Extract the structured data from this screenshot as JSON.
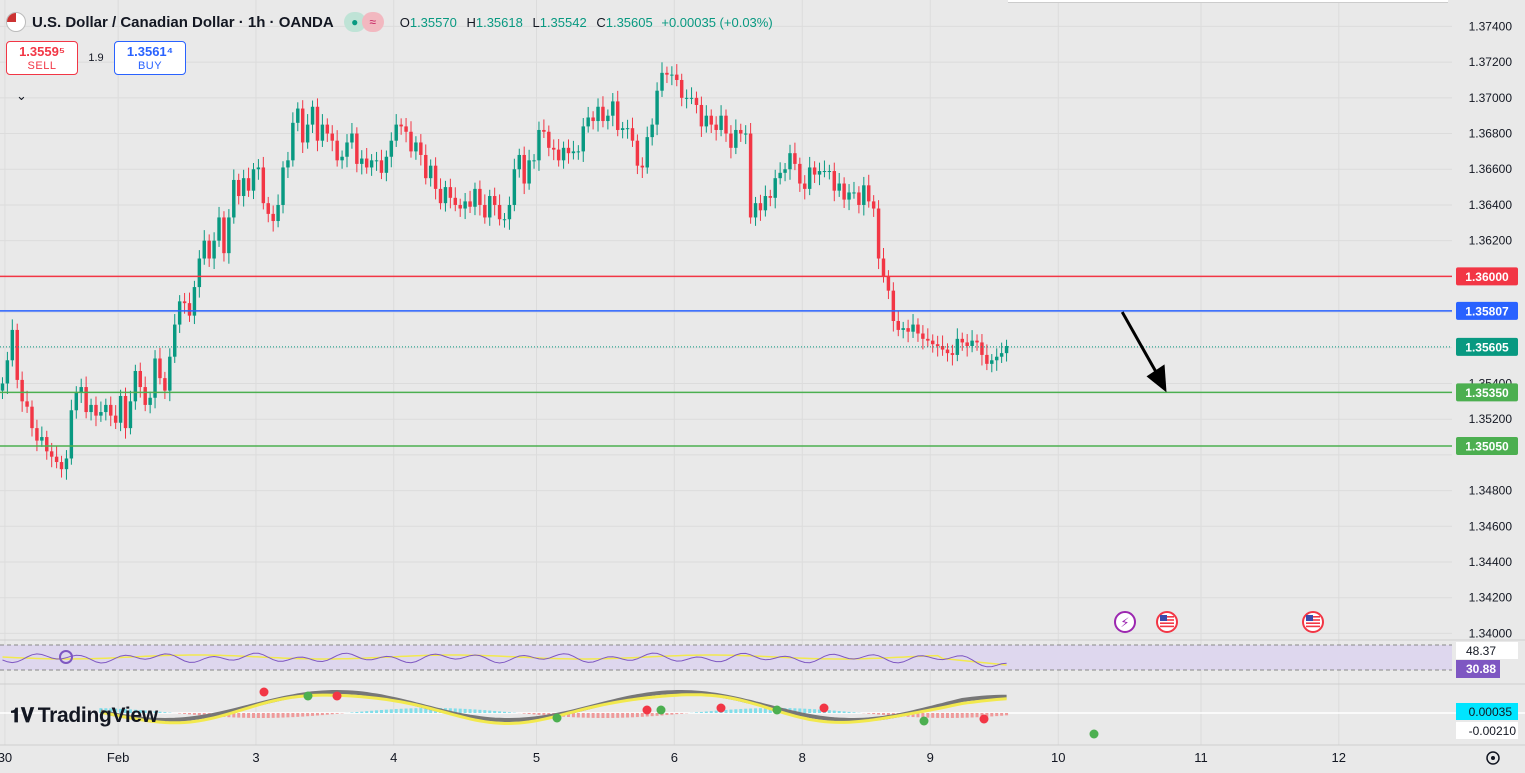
{
  "header": {
    "symbol": "U.S. Dollar / Canadian Dollar · 1h · OANDA",
    "ohlc": [
      {
        "key": "O",
        "value": "1.35570"
      },
      {
        "key": "H",
        "value": "1.35618"
      },
      {
        "key": "L",
        "value": "1.35542"
      },
      {
        "key": "C",
        "value": "1.35605"
      }
    ],
    "change": "+0.00035 (+0.03%)"
  },
  "trade": {
    "sell_price": "1.3559⁵",
    "sell_label": "SELL",
    "spread": "1.9",
    "buy_price": "1.3561⁴",
    "buy_label": "BUY"
  },
  "brand": "TradingView",
  "colors": {
    "up": "#089981",
    "down": "#f23645",
    "resistance": "#f23645",
    "pivot": "#2962ff",
    "support": "#4caf50",
    "rsi": "#7e57c2",
    "rsi_ma": "#f2e94e"
  },
  "chart_data": {
    "type": "candlestick",
    "x_ticks": [
      "30",
      "Feb",
      "3",
      "4",
      "5",
      "6",
      "8",
      "9",
      "10",
      "11",
      "12"
    ],
    "x_tick_hours": [
      1,
      24,
      52,
      80,
      109,
      137,
      163,
      189,
      215,
      244,
      272
    ],
    "candles_close": [
      1.354,
      1.3553,
      1.357,
      1.3542,
      1.353,
      1.3527,
      1.3515,
      1.3508,
      1.351,
      1.3502,
      1.3499,
      1.3496,
      1.3492,
      1.3498,
      1.3525,
      1.3535,
      1.3538,
      1.3524,
      1.3528,
      1.3522,
      1.3524,
      1.3528,
      1.3522,
      1.3518,
      1.3533,
      1.3515,
      1.353,
      1.3547,
      1.3538,
      1.3528,
      1.3532,
      1.3554,
      1.3543,
      1.3536,
      1.3555,
      1.3573,
      1.3586,
      1.3585,
      1.3578,
      1.3594,
      1.361,
      1.362,
      1.361,
      1.362,
      1.3633,
      1.3613,
      1.3633,
      1.3654,
      1.3645,
      1.3655,
      1.3648,
      1.366,
      1.3661,
      1.3641,
      1.3635,
      1.3631,
      1.364,
      1.3661,
      1.3665,
      1.3686,
      1.3694,
      1.3675,
      1.3685,
      1.3695,
      1.3676,
      1.3685,
      1.368,
      1.3676,
      1.3665,
      1.3667,
      1.3675,
      1.368,
      1.3663,
      1.3666,
      1.3661,
      1.3665,
      1.3665,
      1.3658,
      1.3667,
      1.3676,
      1.3685,
      1.3684,
      1.3681,
      1.367,
      1.3675,
      1.3668,
      1.3655,
      1.3662,
      1.3649,
      1.3641,
      1.365,
      1.3644,
      1.364,
      1.3638,
      1.3642,
      1.3639,
      1.3649,
      1.364,
      1.3633,
      1.3645,
      1.364,
      1.3632,
      1.3632,
      1.364,
      1.366,
      1.3668,
      1.3652,
      1.3665,
      1.3665,
      1.3682,
      1.3681,
      1.3672,
      1.3671,
      1.3665,
      1.3672,
      1.3669,
      1.367,
      1.367,
      1.3684,
      1.3689,
      1.3687,
      1.3695,
      1.3687,
      1.369,
      1.3698,
      1.3682,
      1.3683,
      1.3683,
      1.3676,
      1.3662,
      1.3661,
      1.3678,
      1.3685,
      1.3704,
      1.3714,
      1.3713,
      1.3713,
      1.371,
      1.37,
      1.37,
      1.37,
      1.3696,
      1.3684,
      1.369,
      1.3685,
      1.3682,
      1.369,
      1.368,
      1.3672,
      1.3682,
      1.368,
      1.368,
      1.3633,
      1.3641,
      1.3637,
      1.3645,
      1.3644,
      1.3655,
      1.3658,
      1.366,
      1.3669,
      1.3663,
      1.3652,
      1.3649,
      1.3661,
      1.3657,
      1.3659,
      1.3659,
      1.3659,
      1.3648,
      1.3652,
      1.3643,
      1.3647,
      1.3647,
      1.364,
      1.3651,
      1.3642,
      1.3638,
      1.361,
      1.36,
      1.3592,
      1.3575,
      1.357,
      1.3571,
      1.3569,
      1.3573,
      1.3568,
      1.3565,
      1.3564,
      1.3562,
      1.3561,
      1.3559,
      1.3557,
      1.3556,
      1.3565,
      1.3563,
      1.3561,
      1.3564,
      1.3563,
      1.3556,
      1.3551,
      1.3553,
      1.3555,
      1.3557,
      1.3561
    ],
    "close_hours": "one candle per hour starting at hour 0",
    "y_ticks": [
      1.374,
      1.372,
      1.37,
      1.368,
      1.366,
      1.364,
      1.362,
      1.36,
      1.358,
      1.356,
      1.354,
      1.352,
      1.35,
      1.348,
      1.346,
      1.344,
      1.342,
      1.34
    ],
    "y_tick_labels": [
      "1.37400",
      "1.37200",
      "1.37000",
      "1.36800",
      "1.36600",
      "1.36400",
      "1.36200",
      "",
      "",
      "",
      "1.35400",
      "1.35200",
      "",
      "1.34800",
      "1.34600",
      "1.34400",
      "1.34200",
      "1.34000"
    ],
    "ylim": [
      1.3398,
      1.3752
    ],
    "xlim": [
      0,
      295
    ],
    "horizontal_lines": [
      {
        "value": 1.36,
        "label": "1.36000",
        "color": "#f23645"
      },
      {
        "value": 1.35807,
        "label": "1.35807",
        "color": "#2962ff"
      },
      {
        "value": 1.35605,
        "label": "1.35605",
        "color": "#089981",
        "style": "dotted"
      },
      {
        "value": 1.3535,
        "label": "1.35350",
        "color": "#4caf50"
      },
      {
        "value": 1.3505,
        "label": "1.35050",
        "color": "#4caf50"
      }
    ],
    "arrow": {
      "from": [
        228,
        1.358
      ],
      "to": [
        237,
        1.3535
      ],
      "color": "#000000"
    },
    "event_icons": [
      "lightning-event-icon",
      "us-flag-event-icon",
      "us-flag-event-icon"
    ],
    "rsi": {
      "labels": [
        "48.37",
        "30.88"
      ],
      "value_color": "#7e57c2"
    },
    "macd": {
      "labels": [
        "0.00035",
        "-0.00210"
      ]
    }
  }
}
